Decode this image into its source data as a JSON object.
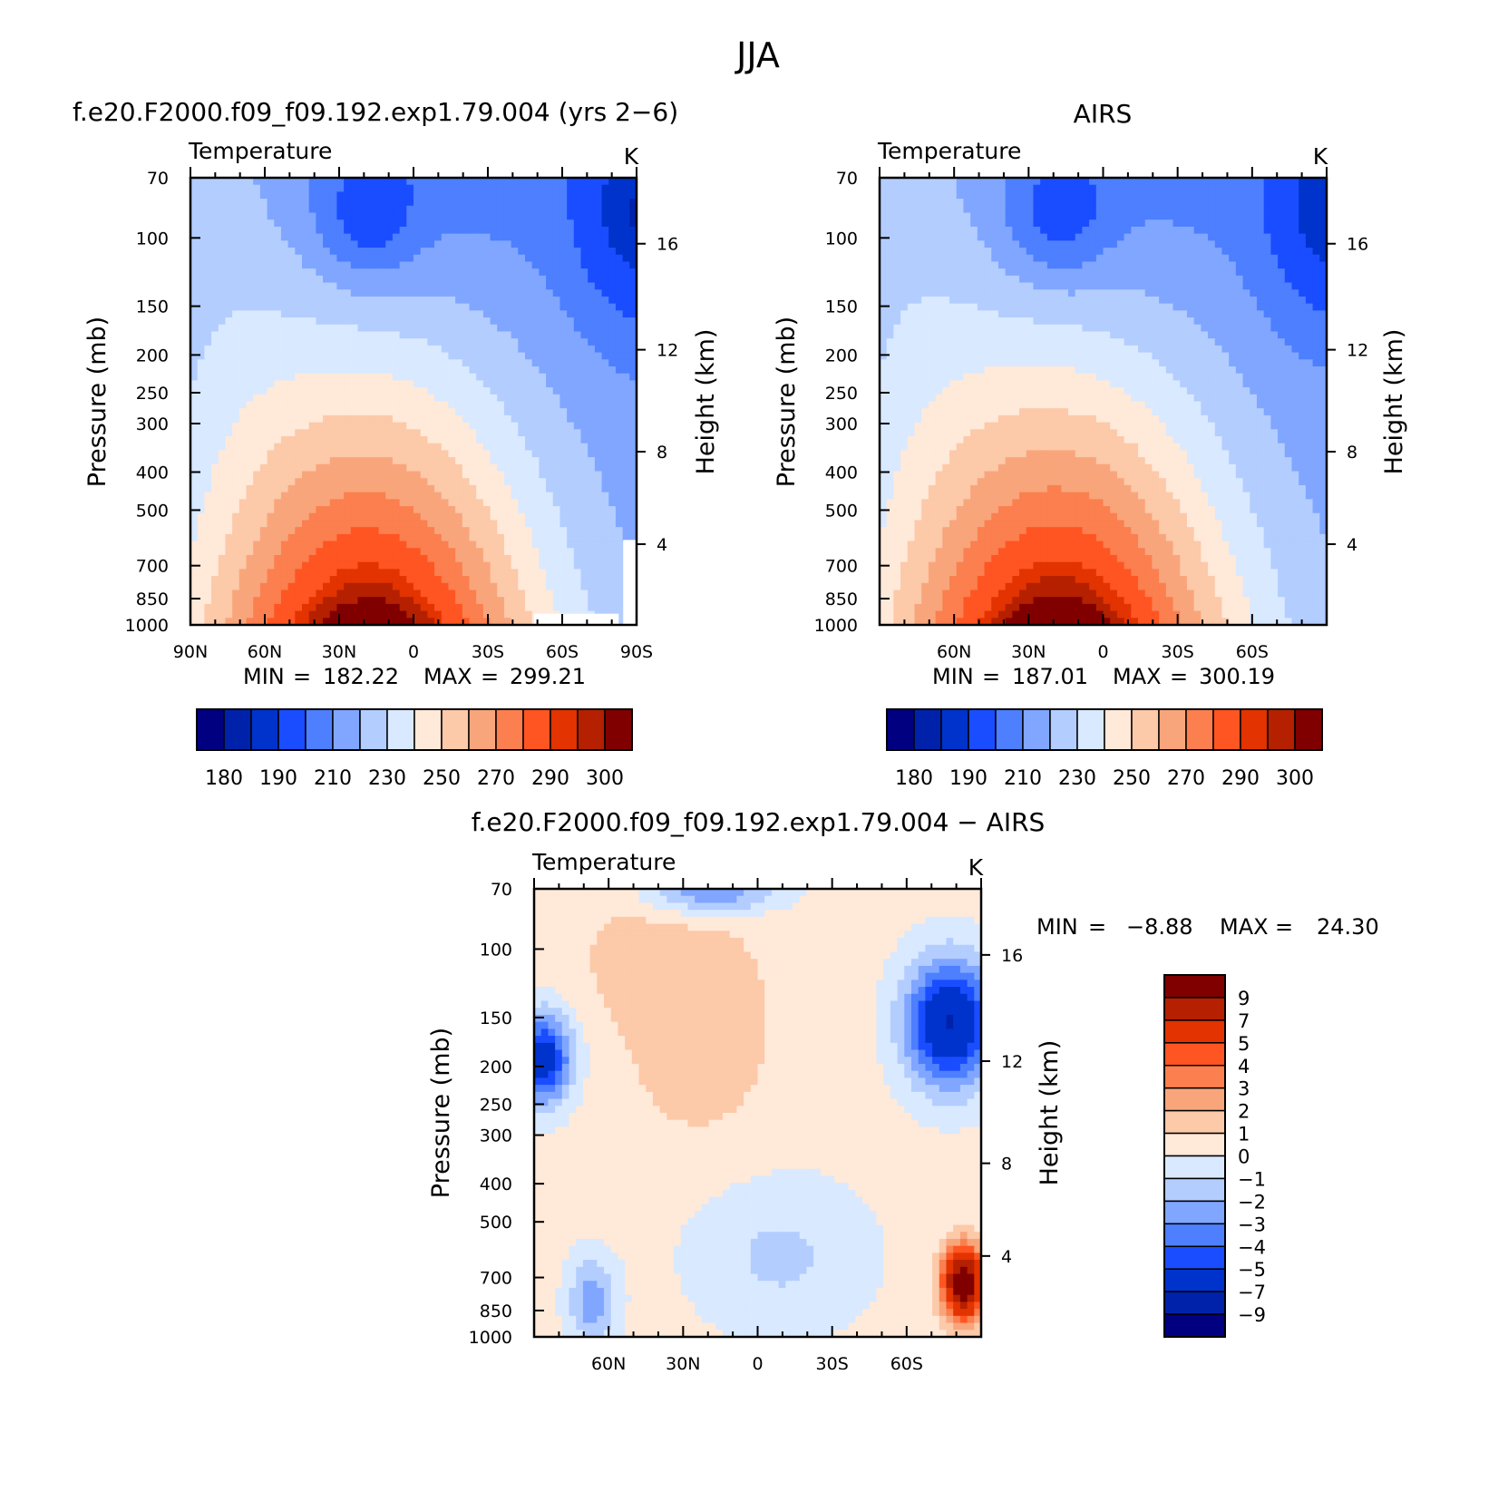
{
  "figure_title": "JJA",
  "palettes": {
    "abs": [
      "#000080",
      "#0022aa",
      "#0033cc",
      "#1a4dff",
      "#4d7fff",
      "#80a6ff",
      "#b3cdff",
      "#d9e9ff",
      "#ffe9d9",
      "#fcc9a9",
      "#f9a57b",
      "#fb7f4f",
      "#ff5522",
      "#e23300",
      "#b42000",
      "#800000"
    ],
    "diff": [
      "#000080",
      "#0022aa",
      "#0033cc",
      "#1a4dff",
      "#4d7fff",
      "#80a6ff",
      "#b3cdff",
      "#d9e9ff",
      "#ffe9d9",
      "#fcc9a9",
      "#f9a57b",
      "#fb7f4f",
      "#ff5522",
      "#e23300",
      "#b42000",
      "#800000"
    ]
  },
  "chart_data": [
    {
      "id": "model",
      "type": "heatmap",
      "title": "f.e20.F2000.f09_f09.192.exp1.79.004 (yrs 2−6)",
      "left_label": "Temperature",
      "units": "K",
      "ylabel": "Pressure (mb)",
      "ylabel_right": "Height (km)",
      "y_ticks": [
        "70",
        "100",
        "150",
        "200",
        "250",
        "300",
        "400",
        "500",
        "700",
        "850",
        "1000"
      ],
      "y_right_ticks": [
        "16",
        "12",
        "8",
        "4"
      ],
      "x_ticks": [
        "90N",
        "60N",
        "30N",
        "0",
        "30S",
        "60S",
        "90S"
      ],
      "stats": {
        "min_label": "MIN",
        "min": "182.22",
        "max_label": "MAX",
        "max": "299.21"
      },
      "colorbar_labels": [
        "180",
        "190",
        "210",
        "230",
        "250",
        "270",
        "290",
        "300"
      ]
    },
    {
      "id": "obs",
      "type": "heatmap",
      "title": "AIRS",
      "left_label": "Temperature",
      "units": "K",
      "ylabel": "Pressure (mb)",
      "ylabel_right": "Height (km)",
      "y_ticks": [
        "70",
        "100",
        "150",
        "200",
        "250",
        "300",
        "400",
        "500",
        "700",
        "850",
        "1000"
      ],
      "y_right_ticks": [
        "16",
        "12",
        "8",
        "4"
      ],
      "x_ticks": [
        "60N",
        "30N",
        "0",
        "30S",
        "60S"
      ],
      "stats": {
        "min_label": "MIN",
        "min": "187.01",
        "max_label": "MAX",
        "max": "300.19"
      },
      "colorbar_labels": [
        "180",
        "190",
        "210",
        "230",
        "250",
        "270",
        "290",
        "300"
      ]
    },
    {
      "id": "diff",
      "type": "heatmap",
      "title": "f.e20.F2000.f09_f09.192.exp1.79.004 − AIRS",
      "left_label": "Temperature",
      "units": "K",
      "ylabel": "Pressure (mb)",
      "ylabel_right": "Height (km)",
      "y_ticks": [
        "70",
        "100",
        "150",
        "200",
        "250",
        "300",
        "400",
        "500",
        "700",
        "850",
        "1000"
      ],
      "y_right_ticks": [
        "16",
        "12",
        "8",
        "4"
      ],
      "x_ticks": [
        "60N",
        "30N",
        "0",
        "30S",
        "60S"
      ],
      "stats": {
        "min_label": "MIN",
        "min": "−8.88",
        "max_label": "MAX",
        "max": "24.30"
      },
      "colorbar_labels": [
        "9",
        "7",
        "5",
        "4",
        "3",
        "2",
        "1",
        "0",
        "−1",
        "−2",
        "−3",
        "−4",
        "−5",
        "−7",
        "−9"
      ]
    }
  ]
}
